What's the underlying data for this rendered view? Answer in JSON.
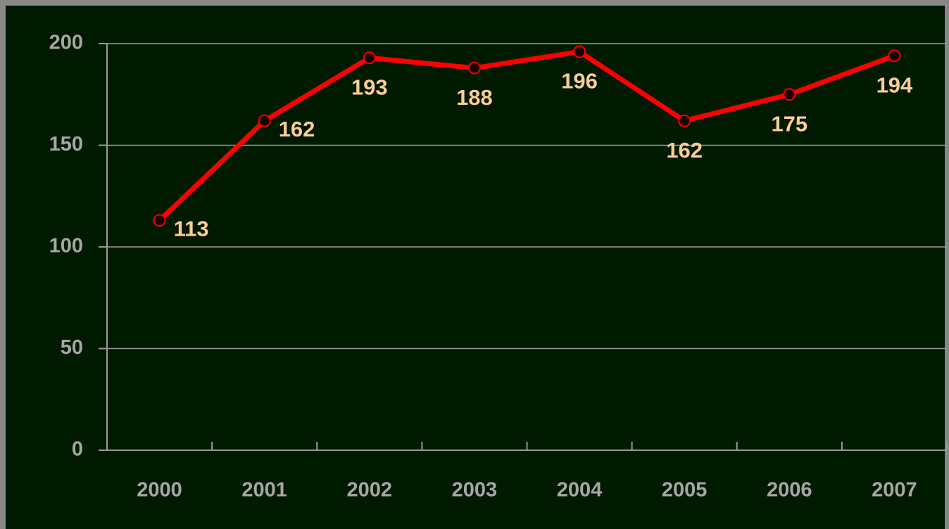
{
  "chart_data": {
    "type": "line",
    "categories": [
      "2000",
      "2001",
      "2002",
      "2003",
      "2004",
      "2005",
      "2006",
      "2007"
    ],
    "values": [
      113,
      162,
      193,
      188,
      196,
      162,
      175,
      194
    ],
    "color": "#ff0000",
    "ylim": [
      0,
      200
    ],
    "yticks": [
      0,
      50,
      100,
      150,
      200
    ],
    "grid": true
  }
}
